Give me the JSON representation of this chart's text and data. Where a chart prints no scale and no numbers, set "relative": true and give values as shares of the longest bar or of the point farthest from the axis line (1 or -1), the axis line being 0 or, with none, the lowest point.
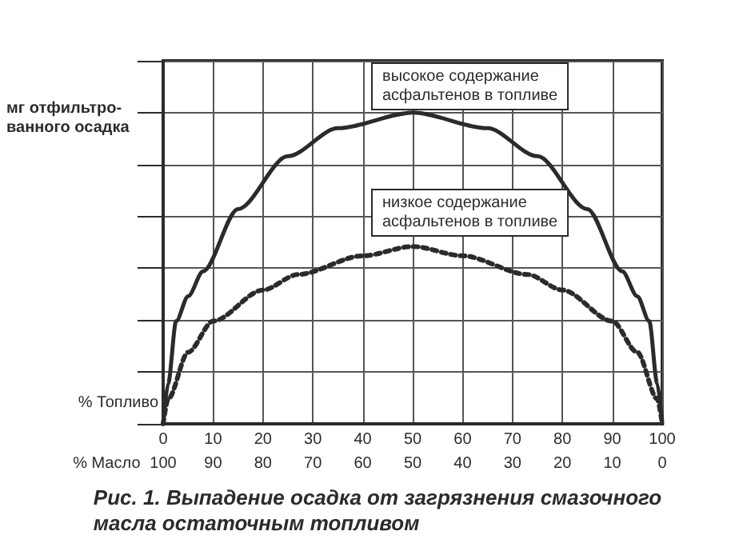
{
  "chart_data": {
    "type": "line",
    "title": "Рис. 1. Выпадение осадка от загрязнения смазочного масла остаточным топливом",
    "xlabel": "% Топливо",
    "ylabel": "мг отфильтро-\nванного осадка",
    "x2label": "% Масло",
    "relative": true,
    "xlim": [
      0,
      100
    ],
    "xticks": [
      0,
      10,
      20,
      30,
      40,
      50,
      60,
      70,
      80,
      90,
      100
    ],
    "x2lim": [
      100,
      0
    ],
    "x2ticks": [
      100,
      90,
      80,
      70,
      60,
      50,
      40,
      30,
      20,
      10,
      0
    ],
    "grid": true,
    "marker": "none",
    "series": [
      {
        "color": "#2b2b2b",
        "line_style": "solid",
        "x": [
          0,
          1,
          2.6,
          5,
          8,
          15,
          25,
          35,
          50,
          65,
          75,
          85,
          92,
          95,
          97.4,
          99,
          100
        ],
        "values": [
          0,
          0.13,
          0.33,
          0.41,
          0.49,
          0.69,
          0.86,
          0.95,
          1,
          0.95,
          0.86,
          0.69,
          0.49,
          0.41,
          0.33,
          0.13,
          0
        ]
      },
      {
        "color": "#2b2b2b",
        "line_style": "dotted",
        "x": [
          0,
          1,
          5,
          10,
          20,
          27,
          40,
          50,
          60,
          73,
          80,
          90,
          95,
          99,
          100
        ],
        "values": [
          0,
          0.08,
          0.23,
          0.33,
          0.43,
          0.48,
          0.54,
          0.57,
          0.54,
          0.48,
          0.43,
          0.33,
          0.23,
          0.08,
          0
        ]
      }
    ],
    "annotations": [
      "высокое содержание\nасфальтенов в топливе",
      "низкое содержание\nасфальтенов в топливе"
    ]
  }
}
